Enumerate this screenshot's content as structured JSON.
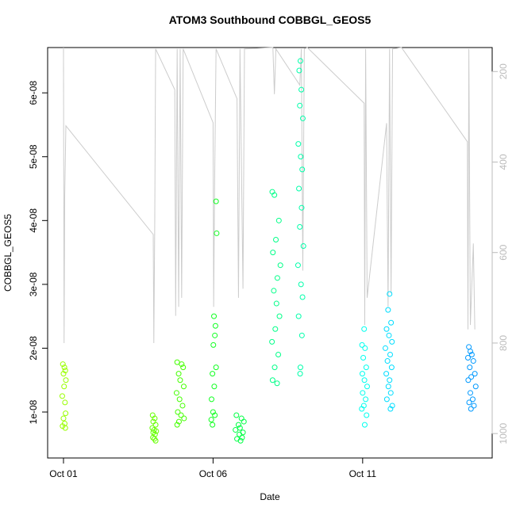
{
  "chart_data": {
    "type": "scatter",
    "title": "ATOM3 Southbound COBBGL_GEOS5",
    "x_label": "Date",
    "y_label": "COBBGL_GEOS5",
    "xlim": [
      -0.53,
      14.33
    ],
    "xticks": [
      {
        "value": 0,
        "label": "Oct 01"
      },
      {
        "value": 5,
        "label": "Oct 06"
      },
      {
        "value": 10,
        "label": "Oct 11"
      }
    ],
    "ylim": [
      2.8e-09,
      6.71e-08
    ],
    "yticks": [
      {
        "value": 1e-08,
        "label": "1e-08"
      },
      {
        "value": 2e-08,
        "label": "2e-08"
      },
      {
        "value": 3e-08,
        "label": "3e-08"
      },
      {
        "value": 4e-08,
        "label": "4e-08"
      },
      {
        "value": 5e-08,
        "label": "5e-08"
      },
      {
        "value": 6e-08,
        "label": "6e-08"
      }
    ],
    "y2lim": [
      1054,
      147
    ],
    "y2ticks": [
      200,
      400,
      600,
      800,
      1000
    ],
    "series": [
      {
        "color": "#99ff00",
        "x": [
          -0.02,
          0.03,
          0.06,
          0.0,
          0.08,
          0.02,
          -0.04,
          0.05,
          0.07,
          0.0,
          0.04,
          -0.03,
          0.06
        ],
        "values": [
          1.75e-08,
          1.7e-08,
          1.65e-08,
          1.6e-08,
          1.5e-08,
          1.4e-08,
          1.25e-08,
          1.15e-08,
          9.8e-09,
          9e-09,
          8.2e-09,
          7.8e-09,
          7.5e-09
        ]
      },
      {
        "color": "#66ff00",
        "x": [
          2.98,
          3.05,
          3.0,
          3.08,
          2.97,
          3.03,
          3.1,
          3.0,
          3.06,
          2.99,
          3.04,
          3.08
        ],
        "values": [
          9.5e-09,
          9e-09,
          8.5e-09,
          8e-09,
          7.5e-09,
          7.2e-09,
          7e-09,
          6.8e-09,
          6.5e-09,
          6e-09,
          5.8e-09,
          5.5e-09
        ]
      },
      {
        "color": "#44ff00",
        "x": [
          3.8,
          3.95,
          4.0,
          3.85,
          3.9,
          4.02,
          3.78,
          3.88,
          3.98,
          3.82,
          3.93,
          4.03,
          3.86,
          3.8
        ],
        "values": [
          1.78e-08,
          1.75e-08,
          1.7e-08,
          1.6e-08,
          1.5e-08,
          1.4e-08,
          1.3e-08,
          1.2e-08,
          1.1e-08,
          1e-08,
          9.5e-09,
          9e-09,
          8.5e-09,
          8e-09
        ]
      },
      {
        "color": "#11ff22",
        "x": [
          5.1,
          5.12,
          5.03,
          5.08,
          5.06,
          5.01,
          5.1,
          4.98,
          5.04,
          4.95,
          5.0,
          5.06,
          4.94,
          4.98
        ],
        "values": [
          4.3e-08,
          3.8e-08,
          2.5e-08,
          2.35e-08,
          2.2e-08,
          2.05e-08,
          1.7e-08,
          1.6e-08,
          1.4e-08,
          1.2e-08,
          1e-08,
          9.5e-09,
          8.8e-09,
          8e-09
        ]
      },
      {
        "color": "#00ff44",
        "x": [
          5.78,
          5.95,
          6.03,
          5.85,
          5.9,
          5.75,
          6.0,
          5.88,
          5.97,
          5.8,
          5.92
        ],
        "values": [
          9.5e-09,
          9e-09,
          8.5e-09,
          8e-09,
          7.5e-09,
          7.2e-09,
          6.8e-09,
          6.5e-09,
          6e-09,
          5.8e-09,
          5.5e-09
        ]
      },
      {
        "color": "#00ff88",
        "x": [
          6.98,
          7.05,
          7.2,
          7.1,
          7.0,
          7.25,
          7.15,
          7.03,
          7.12,
          7.22,
          7.08,
          6.97,
          7.18,
          7.06,
          6.99,
          7.14
        ],
        "values": [
          4.45e-08,
          4.4e-08,
          4e-08,
          3.7e-08,
          3.5e-08,
          3.3e-08,
          3.1e-08,
          2.9e-08,
          2.7e-08,
          2.5e-08,
          2.3e-08,
          2.1e-08,
          1.9e-08,
          1.7e-08,
          1.5e-08,
          1.45e-08
        ]
      },
      {
        "color": "#00ffaa",
        "x": [
          7.92,
          7.88,
          7.95,
          7.9,
          8.0,
          7.85,
          7.93,
          7.98,
          7.87,
          7.96,
          7.9,
          8.02,
          7.84,
          7.94,
          7.99,
          7.86,
          7.97,
          7.92,
          7.91
        ],
        "values": [
          6.5e-08,
          6.35e-08,
          6.05e-08,
          5.8e-08,
          5.6e-08,
          5.2e-08,
          5e-08,
          4.8e-08,
          4.5e-08,
          4.2e-08,
          3.9e-08,
          3.6e-08,
          3.3e-08,
          3e-08,
          2.8e-08,
          2.5e-08,
          2.2e-08,
          1.7e-08,
          1.6e-08
        ]
      },
      {
        "color": "#00ffee",
        "x": [
          10.05,
          9.98,
          10.08,
          10.02,
          10.12,
          9.99,
          10.06,
          10.15,
          10.0,
          10.1,
          10.04,
          9.97,
          10.13,
          10.07
        ],
        "values": [
          2.3e-08,
          2.05e-08,
          2e-08,
          1.85e-08,
          1.7e-08,
          1.6e-08,
          1.5e-08,
          1.4e-08,
          1.3e-08,
          1.2e-08,
          1.1e-08,
          1.05e-08,
          9.5e-09,
          8e-09
        ]
      },
      {
        "color": "#00ddff",
        "x": [
          10.9,
          10.85,
          10.95,
          10.8,
          10.88,
          10.98,
          10.76,
          10.92,
          10.83,
          10.97,
          10.79,
          10.9,
          10.86,
          10.94,
          10.81,
          10.99,
          10.93
        ],
        "values": [
          2.85e-08,
          2.6e-08,
          2.4e-08,
          2.3e-08,
          2.2e-08,
          2.1e-08,
          2e-08,
          1.9e-08,
          1.8e-08,
          1.7e-08,
          1.6e-08,
          1.5e-08,
          1.4e-08,
          1.3e-08,
          1.2e-08,
          1.1e-08,
          1.05e-08
        ]
      },
      {
        "color": "#0099ff",
        "x": [
          13.55,
          13.6,
          13.65,
          13.52,
          13.7,
          13.58,
          13.75,
          13.63,
          13.53,
          13.78,
          13.6,
          13.68,
          13.56,
          13.72,
          13.62
        ],
        "values": [
          2.02e-08,
          1.95e-08,
          1.9e-08,
          1.85e-08,
          1.8e-08,
          1.7e-08,
          1.6e-08,
          1.55e-08,
          1.5e-08,
          1.4e-08,
          1.3e-08,
          1.2e-08,
          1.15e-08,
          1.1e-08,
          1.05e-08
        ]
      },
      {
        "type": "line",
        "axis": "y2",
        "color": "#cccccc",
        "x": [
          0.0,
          0.02,
          0.04,
          0.08,
          3.0,
          3.02,
          3.05,
          3.08,
          3.72,
          3.75,
          3.8,
          3.85,
          3.9,
          3.95,
          4.0,
          5.0,
          5.02,
          5.05,
          5.1,
          5.8,
          5.85,
          5.9,
          6.0,
          6.05,
          7.0,
          7.05,
          7.1,
          7.9,
          7.95,
          8.0,
          8.05,
          8.15,
          10.05,
          10.07,
          10.1,
          10.15,
          10.8,
          10.85,
          10.9,
          10.95,
          11.0,
          11.3,
          13.5,
          13.52,
          13.55,
          13.6,
          13.7,
          13.75
        ],
        "values": [
          147,
          800,
          480,
          320,
          560,
          800,
          540,
          150,
          240,
          740,
          150,
          720,
          150,
          700,
          150,
          313,
          720,
          460,
          150,
          260,
          700,
          150,
          680,
          150,
          147,
          250,
          150,
          230,
          150,
          640,
          150,
          147,
          270,
          760,
          150,
          700,
          314,
          720,
          150,
          690,
          150,
          147,
          355,
          770,
          150,
          760,
          580,
          770
        ]
      }
    ]
  }
}
